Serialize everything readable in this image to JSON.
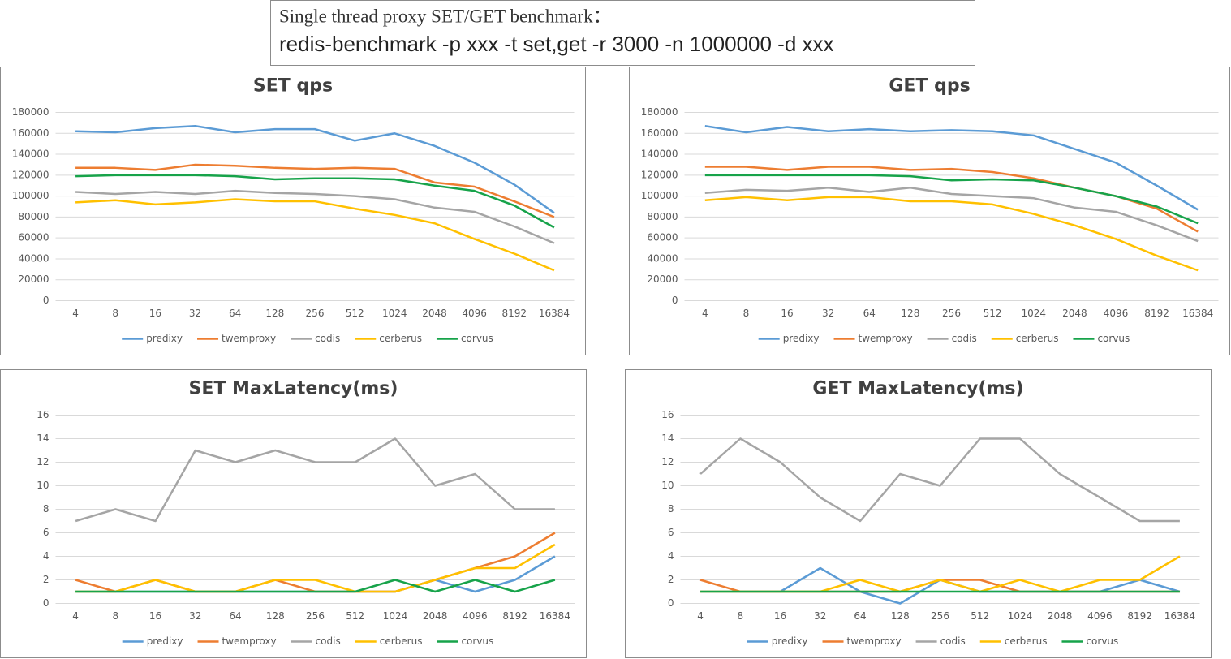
{
  "header": {
    "line1": "Single thread proxy SET/GET benchmark：",
    "line2": "redis-benchmark -p xxx -t set,get -r 3000 -n 1000000 -d xxx"
  },
  "chart_data": [
    {
      "type": "line",
      "title": "SET  qps",
      "categories": [
        "4",
        "8",
        "16",
        "32",
        "64",
        "128",
        "256",
        "512",
        "1024",
        "2048",
        "4096",
        "8192",
        "16384"
      ],
      "ylim": [
        0,
        180000
      ],
      "yticks": [
        0,
        20000,
        40000,
        60000,
        80000,
        100000,
        120000,
        140000,
        160000,
        180000
      ],
      "grid": true,
      "legend": "bottom",
      "series": [
        {
          "name": "predixy",
          "color": "#5b9bd5",
          "values": [
            162000,
            161000,
            165000,
            167000,
            161000,
            164000,
            164000,
            153000,
            160000,
            148000,
            132000,
            111000,
            84000
          ]
        },
        {
          "name": "twemproxy",
          "color": "#ed7d31",
          "values": [
            127000,
            127000,
            125000,
            130000,
            129000,
            127000,
            126000,
            127000,
            126000,
            113000,
            109000,
            95000,
            80000
          ]
        },
        {
          "name": "codis",
          "color": "#a5a5a5",
          "values": [
            104000,
            102000,
            104000,
            102000,
            105000,
            103000,
            102000,
            100000,
            97000,
            89000,
            85000,
            71000,
            55000
          ]
        },
        {
          "name": "cerberus",
          "color": "#ffc000",
          "values": [
            94000,
            96000,
            92000,
            94000,
            97000,
            95000,
            95000,
            88000,
            82000,
            74000,
            59000,
            45000,
            29000
          ]
        },
        {
          "name": "corvus",
          "color": "#17a34a",
          "values": [
            119000,
            120000,
            120000,
            120000,
            119000,
            116000,
            117000,
            117000,
            116000,
            110000,
            105000,
            91000,
            70000
          ]
        }
      ]
    },
    {
      "type": "line",
      "title": "GET  qps",
      "categories": [
        "4",
        "8",
        "16",
        "32",
        "64",
        "128",
        "256",
        "512",
        "1024",
        "2048",
        "4096",
        "8192",
        "16384"
      ],
      "ylim": [
        0,
        180000
      ],
      "yticks": [
        0,
        20000,
        40000,
        60000,
        80000,
        100000,
        120000,
        140000,
        160000,
        180000
      ],
      "grid": true,
      "legend": "bottom",
      "series": [
        {
          "name": "predixy",
          "color": "#5b9bd5",
          "values": [
            167000,
            161000,
            166000,
            162000,
            164000,
            162000,
            163000,
            162000,
            158000,
            145000,
            132000,
            110000,
            87000
          ]
        },
        {
          "name": "twemproxy",
          "color": "#ed7d31",
          "values": [
            128000,
            128000,
            125000,
            128000,
            128000,
            125000,
            126000,
            123000,
            117000,
            108000,
            100000,
            88000,
            66000
          ]
        },
        {
          "name": "codis",
          "color": "#a5a5a5",
          "values": [
            103000,
            106000,
            105000,
            108000,
            104000,
            108000,
            102000,
            100000,
            98000,
            89000,
            85000,
            72000,
            57000
          ]
        },
        {
          "name": "cerberus",
          "color": "#ffc000",
          "values": [
            96000,
            99000,
            96000,
            99000,
            99000,
            95000,
            95000,
            92000,
            83000,
            72000,
            59000,
            43000,
            29000
          ]
        },
        {
          "name": "corvus",
          "color": "#17a34a",
          "values": [
            120000,
            120000,
            120000,
            120000,
            120000,
            119000,
            115000,
            116000,
            115000,
            108000,
            100000,
            90000,
            74000
          ]
        }
      ]
    },
    {
      "type": "line",
      "title": "SET MaxLatency(ms)",
      "categories": [
        "4",
        "8",
        "16",
        "32",
        "64",
        "128",
        "256",
        "512",
        "1024",
        "2048",
        "4096",
        "8192",
        "16384"
      ],
      "ylim": [
        0,
        16
      ],
      "yticks": [
        0,
        2,
        4,
        6,
        8,
        10,
        12,
        14,
        16
      ],
      "grid": true,
      "legend": "bottom",
      "series": [
        {
          "name": "predixy",
          "color": "#5b9bd5",
          "values": [
            1,
            1,
            1,
            1,
            1,
            1,
            1,
            1,
            1,
            2,
            1,
            2,
            4
          ]
        },
        {
          "name": "twemproxy",
          "color": "#ed7d31",
          "values": [
            2,
            1,
            2,
            1,
            1,
            2,
            1,
            1,
            1,
            2,
            3,
            4,
            6
          ]
        },
        {
          "name": "codis",
          "color": "#a5a5a5",
          "values": [
            7,
            8,
            7,
            13,
            12,
            13,
            12,
            12,
            14,
            10,
            11,
            8,
            8
          ]
        },
        {
          "name": "cerberus",
          "color": "#ffc000",
          "values": [
            1,
            1,
            2,
            1,
            1,
            2,
            2,
            1,
            1,
            2,
            3,
            3,
            5
          ]
        },
        {
          "name": "corvus",
          "color": "#17a34a",
          "values": [
            1,
            1,
            1,
            1,
            1,
            1,
            1,
            1,
            2,
            1,
            2,
            1,
            2
          ]
        }
      ]
    },
    {
      "type": "line",
      "title": "GET MaxLatency(ms)",
      "categories": [
        "4",
        "8",
        "16",
        "32",
        "64",
        "128",
        "256",
        "512",
        "1024",
        "2048",
        "4096",
        "8192",
        "16384"
      ],
      "ylim": [
        0,
        16
      ],
      "yticks": [
        0,
        2,
        4,
        6,
        8,
        10,
        12,
        14,
        16
      ],
      "grid": true,
      "legend": "bottom",
      "series": [
        {
          "name": "predixy",
          "color": "#5b9bd5",
          "values": [
            1,
            1,
            1,
            3,
            1,
            0,
            2,
            1,
            1,
            1,
            1,
            2,
            1
          ]
        },
        {
          "name": "twemproxy",
          "color": "#ed7d31",
          "values": [
            2,
            1,
            1,
            1,
            1,
            1,
            2,
            2,
            1,
            1,
            1,
            1,
            1
          ]
        },
        {
          "name": "codis",
          "color": "#a5a5a5",
          "values": [
            11,
            14,
            12,
            9,
            7,
            11,
            10,
            14,
            14,
            11,
            9,
            7,
            7
          ]
        },
        {
          "name": "cerberus",
          "color": "#ffc000",
          "values": [
            1,
            1,
            1,
            1,
            2,
            1,
            2,
            1,
            2,
            1,
            2,
            2,
            4
          ]
        },
        {
          "name": "corvus",
          "color": "#17a34a",
          "values": [
            1,
            1,
            1,
            1,
            1,
            1,
            1,
            1,
            1,
            1,
            1,
            1,
            1
          ]
        }
      ]
    }
  ]
}
